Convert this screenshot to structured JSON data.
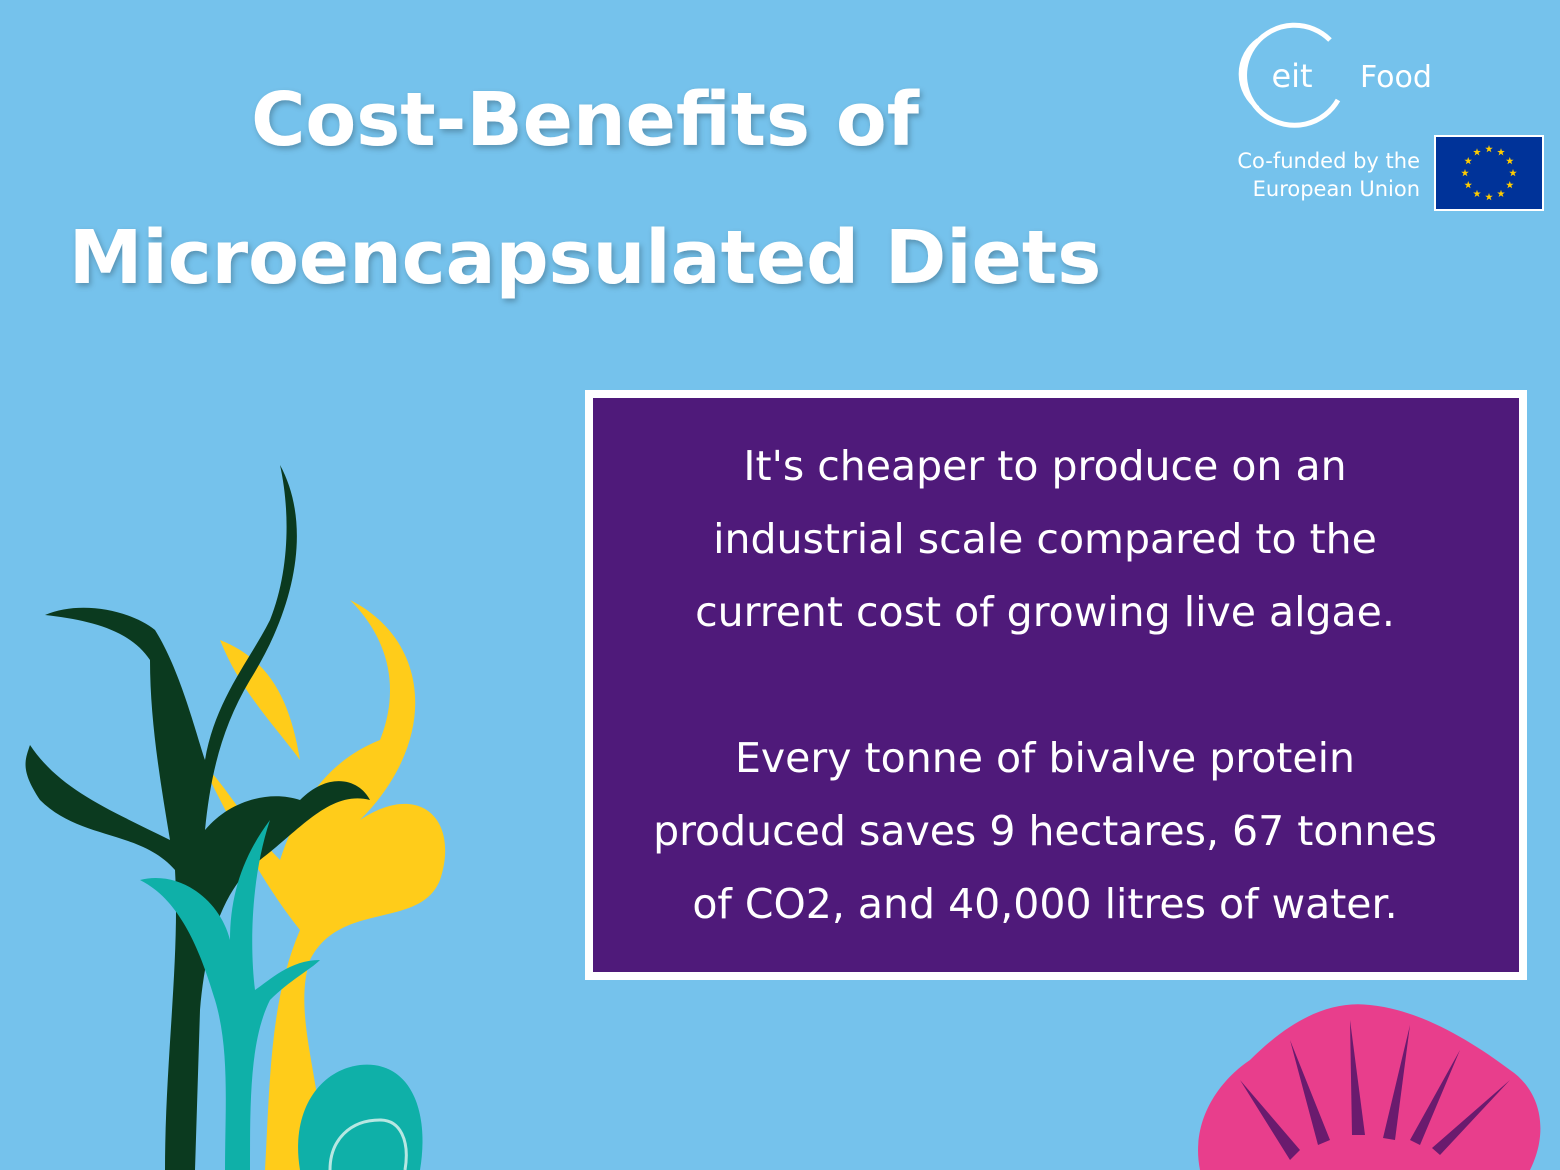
{
  "header": {
    "title_lines": [
      "Cost-Benefits of",
      "Microencapsulated Diets"
    ]
  },
  "logo": {
    "mark": "eit",
    "name": "Food",
    "funding_lines": [
      "Co-funded by the",
      "European Union"
    ]
  },
  "card": {
    "paragraphs": [
      [
        "It's cheaper to produce on an",
        "industrial scale compared to the",
        "current cost of growing live algae."
      ],
      [
        "Every tonne of bivalve protein",
        "produced saves 9 hectares, 67 tonnes",
        "of CO2, and 40,000 litres of water."
      ]
    ]
  }
}
